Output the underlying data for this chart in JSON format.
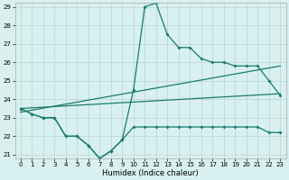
{
  "x": [
    0,
    1,
    2,
    3,
    4,
    5,
    6,
    7,
    8,
    9,
    10,
    11,
    12,
    13,
    14,
    15,
    16,
    17,
    18,
    19,
    20,
    21,
    22,
    23
  ],
  "line_low": [
    23.5,
    23.2,
    23.0,
    23.0,
    22.0,
    22.0,
    21.5,
    20.8,
    21.2,
    21.8,
    22.5,
    22.5,
    22.5,
    22.5,
    22.5,
    22.5,
    22.5,
    22.5,
    22.5,
    22.5,
    22.5,
    22.5,
    22.2,
    22.2
  ],
  "line_high": [
    23.5,
    23.2,
    23.0,
    23.0,
    22.0,
    22.0,
    21.5,
    20.8,
    21.2,
    21.8,
    24.5,
    29.0,
    29.2,
    27.5,
    26.8,
    26.8,
    26.2,
    26.0,
    26.0,
    25.8,
    25.8,
    25.8,
    25.0,
    24.2
  ],
  "trend1_x": [
    0,
    23
  ],
  "trend1_y": [
    23.5,
    24.3
  ],
  "trend2_x": [
    0,
    23
  ],
  "trend2_y": [
    23.3,
    25.8
  ],
  "ylim": [
    21,
    29
  ],
  "xlim": [
    -0.5,
    23.5
  ],
  "yticks": [
    21,
    22,
    23,
    24,
    25,
    26,
    27,
    28,
    29
  ],
  "xticks": [
    0,
    1,
    2,
    3,
    4,
    5,
    6,
    7,
    8,
    9,
    10,
    11,
    12,
    13,
    14,
    15,
    16,
    17,
    18,
    19,
    20,
    21,
    22,
    23
  ],
  "xlabel": "Humidex (Indice chaleur)",
  "line_color": "#1a7a6e",
  "bg_color": "#d8f0f0",
  "grid_color": "#c0d8d8"
}
